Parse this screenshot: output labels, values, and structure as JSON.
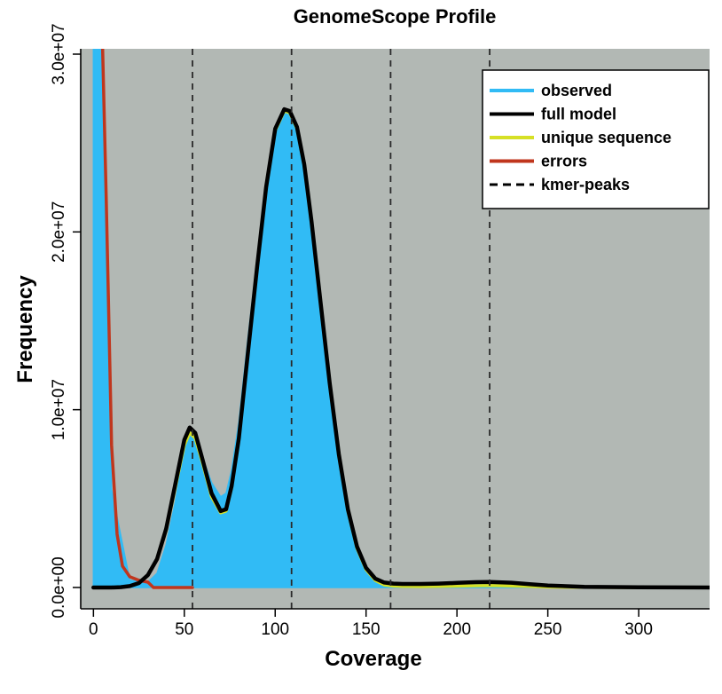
{
  "chart_data": {
    "type": "area",
    "title": "GenomeScope Profile",
    "xlabel": "Coverage",
    "ylabel": "Frequency",
    "xlim": [
      -7,
      339
    ],
    "ylim": [
      -1200000,
      30300000
    ],
    "x_ticks": [
      0,
      50,
      100,
      150,
      200,
      250,
      300
    ],
    "x_tick_labels": [
      "0",
      "50",
      "100",
      "150",
      "200",
      "250",
      "300"
    ],
    "y_ticks": [
      0,
      10000000,
      20000000,
      30000000
    ],
    "y_tick_labels": [
      "0.0e+00",
      "1.0e+07",
      "2.0e+07",
      "3.0e+07"
    ],
    "kmer_peaks": [
      54.5,
      109,
      163.5,
      218
    ],
    "legend_position": "top-right",
    "legend": [
      {
        "label": "observed",
        "color": "#31bbf5",
        "style": "solid"
      },
      {
        "label": "full model",
        "color": "#000000",
        "style": "solid"
      },
      {
        "label": "unique sequence",
        "color": "#d6e026",
        "style": "solid"
      },
      {
        "label": "errors",
        "color": "#c0361d",
        "style": "solid"
      },
      {
        "label": "kmer-peaks",
        "color": "#000000",
        "style": "dashed"
      }
    ],
    "series": [
      {
        "name": "observed",
        "color": "#31bbf5",
        "x": [
          0,
          1,
          2,
          3,
          5,
          10,
          20,
          30,
          35,
          40,
          45,
          50,
          53,
          56,
          60,
          65,
          70,
          73,
          76,
          80,
          85,
          90,
          95,
          100,
          105,
          108,
          112,
          116,
          120,
          125,
          130,
          135,
          140,
          145,
          150,
          155,
          160,
          165,
          170,
          180,
          190,
          200,
          210,
          218,
          230,
          240,
          250,
          270,
          300,
          339
        ],
        "y": [
          30500000,
          30500000,
          30500000,
          30500000,
          30500000,
          5500000,
          400000,
          300000,
          800000,
          2400000,
          4800000,
          7700000,
          8700000,
          8500000,
          7300000,
          5900000,
          5100000,
          5300000,
          6600000,
          9300000,
          14000000,
          18500000,
          22800000,
          25800000,
          26800000,
          26700000,
          25900000,
          23800000,
          20600000,
          16000000,
          11500000,
          7500000,
          4400000,
          2300000,
          1100000,
          500000,
          280000,
          220000,
          200000,
          200000,
          220000,
          260000,
          300000,
          310000,
          270000,
          190000,
          110000,
          40000,
          10000,
          0
        ]
      },
      {
        "name": "full model",
        "color": "#000000",
        "x": [
          0,
          5,
          10,
          15,
          20,
          25,
          30,
          35,
          40,
          45,
          50,
          53,
          56,
          60,
          65,
          70,
          73,
          76,
          80,
          85,
          90,
          95,
          100,
          105,
          108,
          112,
          116,
          120,
          125,
          130,
          135,
          140,
          145,
          150,
          155,
          160,
          165,
          170,
          180,
          190,
          200,
          210,
          218,
          230,
          240,
          250,
          270,
          300,
          339
        ],
        "y": [
          0,
          0,
          0,
          20000,
          80000,
          250000,
          700000,
          1600000,
          3300000,
          5800000,
          8300000,
          9000000,
          8700000,
          7200000,
          5300000,
          4300000,
          4400000,
          5700000,
          8400000,
          13200000,
          18000000,
          22500000,
          25800000,
          26900000,
          26800000,
          25900000,
          23800000,
          20600000,
          16000000,
          11500000,
          7500000,
          4400000,
          2300000,
          1100000,
          500000,
          280000,
          220000,
          200000,
          200000,
          220000,
          260000,
          300000,
          310000,
          270000,
          190000,
          110000,
          40000,
          10000,
          0
        ]
      },
      {
        "name": "unique sequence",
        "color": "#d6e026",
        "x": [
          0,
          5,
          10,
          15,
          20,
          25,
          30,
          35,
          40,
          45,
          50,
          53,
          56,
          60,
          65,
          70,
          73,
          76,
          80,
          85,
          90,
          95,
          100,
          105,
          108,
          112,
          116,
          120,
          125,
          130,
          135,
          140,
          145,
          150,
          155,
          160,
          165,
          170,
          180,
          190,
          200,
          210,
          218,
          230,
          240,
          250,
          270,
          300,
          339
        ],
        "y": [
          0,
          0,
          0,
          20000,
          80000,
          250000,
          700000,
          1600000,
          3200000,
          5600000,
          8000000,
          8700000,
          8400000,
          7000000,
          5100000,
          4200000,
          4300000,
          5600000,
          8300000,
          13100000,
          17900000,
          22400000,
          25700000,
          26800000,
          26700000,
          25800000,
          23700000,
          20500000,
          15900000,
          11400000,
          7400000,
          4300000,
          2200000,
          1000000,
          400000,
          150000,
          80000,
          60000,
          50000,
          60000,
          80000,
          100000,
          110000,
          90000,
          60000,
          30000,
          10000,
          0,
          0
        ]
      },
      {
        "name": "errors",
        "color": "#c0361d",
        "x": [
          1,
          3,
          5,
          7,
          10,
          13,
          16,
          20,
          25,
          30,
          33,
          40,
          50,
          54.5
        ],
        "y": [
          30500000,
          30500000,
          30500000,
          22000000,
          8000000,
          3000000,
          1200000,
          600000,
          400000,
          300000,
          0,
          0,
          0,
          0
        ]
      }
    ]
  }
}
